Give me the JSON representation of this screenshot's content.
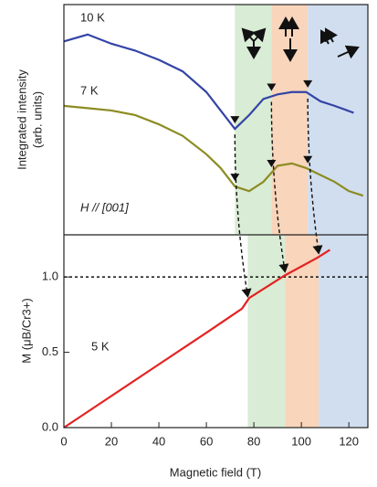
{
  "chart_data": [
    {
      "type": "line",
      "ylabel": "Integrated intensity",
      "ylabel2": "(arb. units)",
      "annotation": "H // [001]",
      "xlim": [
        0,
        128
      ],
      "ylim": [
        0,
        1
      ],
      "regions": [
        {
          "start": 72,
          "end": 87.4,
          "color": "#d9ecd5"
        },
        {
          "start": 87.4,
          "end": 102.7,
          "color": "#f8d5bb"
        },
        {
          "start": 102.7,
          "end": 128,
          "color": "#d1deef"
        }
      ],
      "series": [
        {
          "name": "10 K",
          "color": "#3444a6",
          "x": [
            0,
            10,
            20,
            30,
            40,
            50,
            60,
            66,
            72,
            78,
            84,
            90,
            96,
            102,
            108,
            114,
            122
          ],
          "values": [
            0.84,
            0.87,
            0.83,
            0.8,
            0.76,
            0.71,
            0.62,
            0.54,
            0.46,
            0.52,
            0.59,
            0.61,
            0.62,
            0.62,
            0.58,
            0.56,
            0.53
          ]
        },
        {
          "name": "7 K",
          "color": "#8c8c22",
          "x": [
            0,
            10,
            20,
            30,
            40,
            50,
            60,
            66,
            72,
            78,
            84,
            90,
            96,
            102,
            108,
            114,
            120,
            126
          ],
          "values": [
            0.56,
            0.55,
            0.54,
            0.52,
            0.48,
            0.43,
            0.35,
            0.29,
            0.21,
            0.19,
            0.23,
            0.3,
            0.31,
            0.29,
            0.26,
            0.23,
            0.19,
            0.17
          ]
        }
      ]
    },
    {
      "type": "line",
      "ylabel": "M (μB/Cr3+)",
      "xlabel": "Magnetic field (T)",
      "xlim": [
        0,
        128
      ],
      "ylim": [
        0,
        1.28
      ],
      "xticks": [
        0,
        20,
        40,
        60,
        80,
        100,
        120
      ],
      "yticks": [
        {
          "value": 0,
          "label": "0.0"
        },
        {
          "value": 0.5,
          "label": "0.5"
        },
        {
          "value": 1,
          "label": "1.0"
        }
      ],
      "hline": 1,
      "regions": [
        {
          "start": 77.4,
          "end": 93.1,
          "color": "#d9ecd5"
        },
        {
          "start": 93.1,
          "end": 107.3,
          "color": "#f8d5bb"
        },
        {
          "start": 107.3,
          "end": 128,
          "color": "#d1deef"
        }
      ],
      "series": [
        {
          "name": "5 K",
          "color": "#e42222",
          "x": [
            0,
            20,
            40,
            60,
            75,
            78,
            93,
            107,
            112
          ],
          "values": [
            0,
            0.21,
            0.42,
            0.63,
            0.79,
            0.86,
            1.01,
            1.13,
            1.18
          ]
        }
      ]
    }
  ]
}
